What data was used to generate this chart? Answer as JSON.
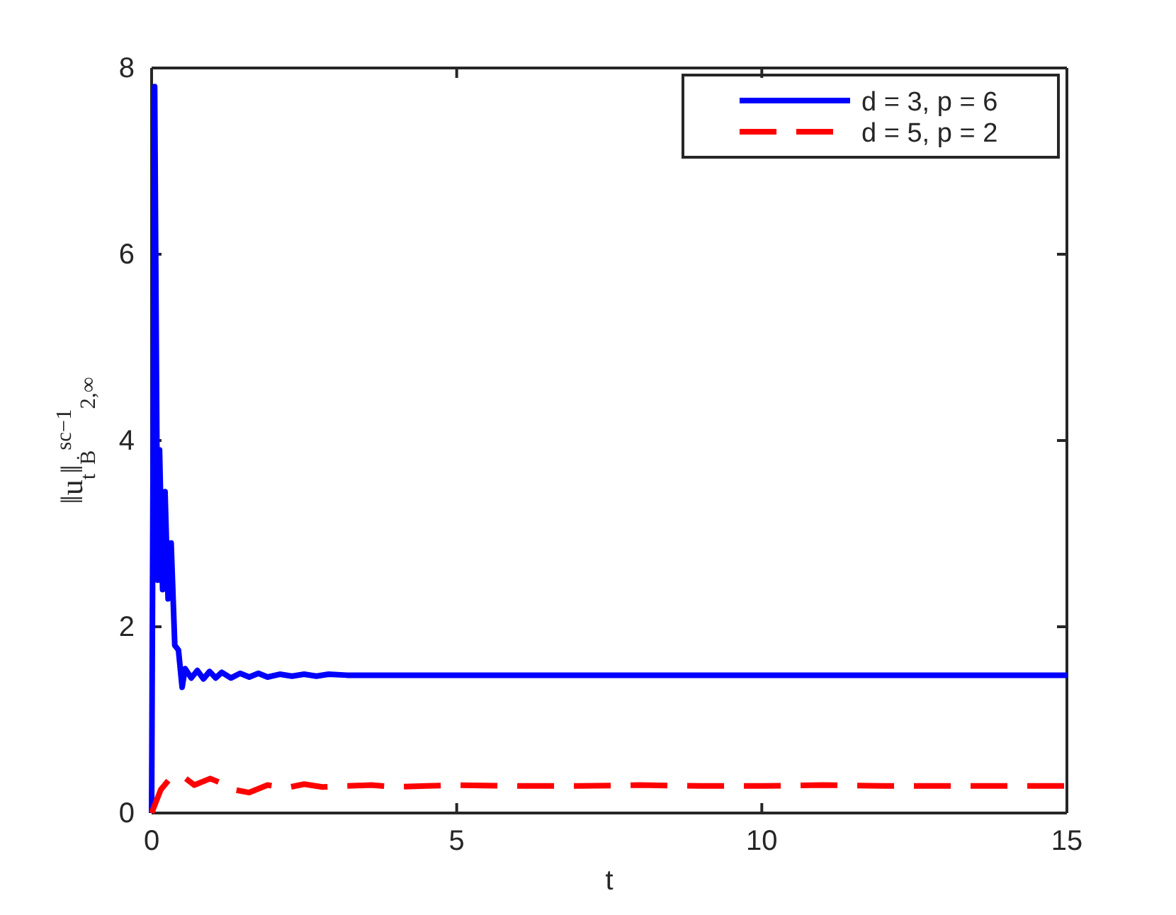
{
  "chart_data": {
    "type": "line",
    "xlabel": "t",
    "ylabel": "‖u$_{t}$‖$_{Ḃ}$$^{sc−1}$$_{2,∞}$",
    "xlim": [
      0,
      15
    ],
    "ylim": [
      0,
      8
    ],
    "xticks": [
      0,
      5,
      10,
      15
    ],
    "yticks": [
      0,
      2,
      4,
      6,
      8
    ],
    "legend": "top right",
    "grid": false,
    "series": [
      {
        "name": "d = 3, p = 6",
        "color": "#0000ff",
        "line_style": "solid",
        "x": [
          0,
          0.05,
          0.1,
          0.13,
          0.18,
          0.22,
          0.27,
          0.32,
          0.38,
          0.44,
          0.5,
          0.55,
          0.65,
          0.75,
          0.85,
          0.95,
          1.05,
          1.15,
          1.3,
          1.45,
          1.6,
          1.75,
          1.9,
          2.1,
          2.3,
          2.5,
          2.7,
          2.9,
          3.2,
          4,
          6,
          8,
          10,
          12,
          15
        ],
        "values": [
          0,
          7.8,
          2.5,
          3.9,
          2.4,
          3.45,
          2.3,
          2.9,
          1.8,
          1.75,
          1.35,
          1.55,
          1.45,
          1.53,
          1.44,
          1.52,
          1.45,
          1.51,
          1.45,
          1.5,
          1.46,
          1.5,
          1.46,
          1.49,
          1.47,
          1.49,
          1.47,
          1.49,
          1.48,
          1.48,
          1.48,
          1.48,
          1.48,
          1.48,
          1.48
        ]
      },
      {
        "name": "d = 5, p = 2",
        "color": "#ff0000",
        "line_style": "dashed",
        "x": [
          0,
          0.15,
          0.3,
          0.5,
          0.7,
          0.96,
          1.15,
          1.35,
          1.6,
          1.9,
          2.2,
          2.5,
          2.8,
          3.2,
          3.6,
          4,
          4.5,
          5,
          6,
          7,
          8,
          9,
          10,
          11,
          12,
          13,
          14,
          15
        ],
        "values": [
          0,
          0.25,
          0.37,
          0.4,
          0.3,
          0.37,
          0.32,
          0.25,
          0.22,
          0.3,
          0.27,
          0.31,
          0.28,
          0.29,
          0.3,
          0.28,
          0.29,
          0.3,
          0.29,
          0.29,
          0.3,
          0.29,
          0.29,
          0.3,
          0.29,
          0.29,
          0.29,
          0.29
        ]
      }
    ]
  }
}
